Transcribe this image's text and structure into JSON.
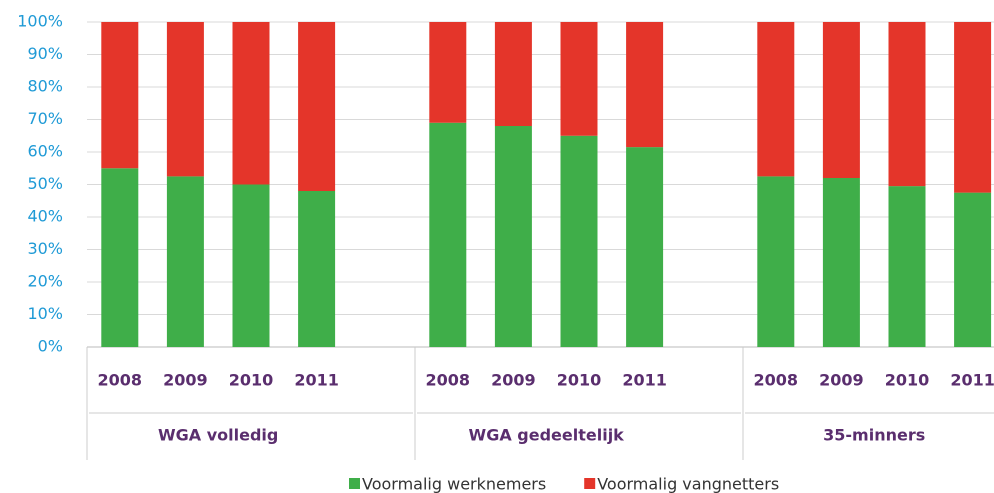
{
  "chart_data": {
    "type": "stacked_bar",
    "categories": [
      "2008",
      "2009",
      "2010",
      "2011",
      "2008",
      "2009",
      "2010",
      "2011",
      "2008",
      "2009",
      "2010",
      "2011"
    ],
    "groups": [
      "WGA volledig",
      "WGA gedeeltelijk",
      "35-minners"
    ],
    "series": [
      {
        "name": "Voormalig werknemers",
        "color": "#3fae49",
        "values": [
          55,
          52.5,
          50,
          48,
          69,
          68,
          65,
          61.5,
          52.5,
          52,
          49.5,
          47.5
        ]
      },
      {
        "name": "Voormalig vangnetters",
        "color": "#e4352a",
        "values": [
          45,
          47.5,
          50,
          52,
          31,
          32,
          35,
          38.5,
          47.5,
          48,
          50.5,
          52.5
        ]
      }
    ],
    "ylim": [
      0,
      100
    ],
    "yticks": [
      {
        "value": 0,
        "label": "0%"
      },
      {
        "value": 10,
        "label": "10%"
      },
      {
        "value": 20,
        "label": "20%"
      },
      {
        "value": 30,
        "label": "30%"
      },
      {
        "value": 40,
        "label": "40%"
      },
      {
        "value": 50,
        "label": "50%"
      },
      {
        "value": 60,
        "label": "60%"
      },
      {
        "value": 70,
        "label": "70%"
      },
      {
        "value": 80,
        "label": "80%"
      },
      {
        "value": 90,
        "label": "90%"
      },
      {
        "value": 100,
        "label": "100%"
      }
    ],
    "grid": true,
    "legend": "bottom"
  }
}
